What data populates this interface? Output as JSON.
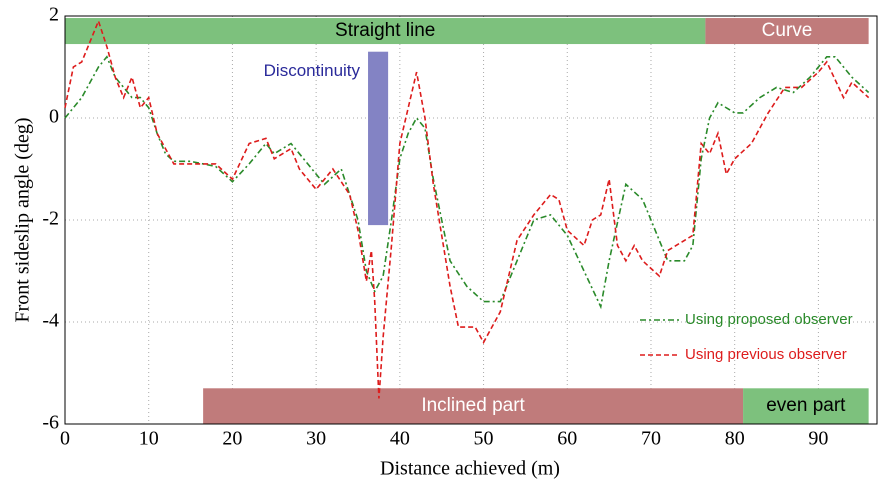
{
  "chart_data": {
    "type": "line",
    "xlabel": "Distance achieved (m)",
    "ylabel": "Front sideslip angle (deg)",
    "xlim": [
      0,
      97
    ],
    "xticks": [
      0,
      10,
      20,
      30,
      40,
      50,
      60,
      70,
      80,
      90
    ],
    "ylim": [
      -6,
      2
    ],
    "yticks": [
      -6,
      -4,
      -2,
      0,
      2
    ],
    "grid": true,
    "legend": "lower right",
    "annotations": [
      {
        "label": "Straight line",
        "x": [
          0,
          76.5
        ],
        "y": [
          1.45,
          1.96
        ],
        "color": "#7dc17d",
        "text_color": "#000000"
      },
      {
        "label": "Curve",
        "x": [
          76.5,
          96
        ],
        "y": [
          1.45,
          1.96
        ],
        "color": "#c07b7b",
        "text_color": "#ffffff"
      },
      {
        "label": "Discontinuity",
        "x": [
          36.2,
          38.6
        ],
        "y": [
          -2.1,
          1.3
        ],
        "color": "#8383c4",
        "text_color": "#2a2a9a"
      },
      {
        "label": "Inclined part",
        "x": [
          16.5,
          81
        ],
        "y": [
          -6,
          -5.3
        ],
        "color": "#c07b7b",
        "text_color": "#ffffff"
      },
      {
        "label": "even part",
        "x": [
          81,
          96
        ],
        "y": [
          -6,
          -5.3
        ],
        "color": "#7dc17d",
        "text_color": "#000000"
      }
    ],
    "series": [
      {
        "name": "Using proposed observer",
        "color": "#2a8a2a",
        "dash": "6,3,2,3",
        "x": [
          0,
          2,
          4,
          5,
          6,
          8,
          9,
          10,
          11,
          12,
          13,
          15,
          18,
          20,
          22,
          24,
          25,
          27,
          29,
          31,
          33,
          35,
          36,
          37,
          38,
          39,
          40,
          41,
          42,
          43,
          44,
          46,
          48,
          50,
          52,
          54,
          56,
          58,
          60,
          62,
          64,
          65,
          67,
          69,
          71,
          72,
          74,
          75,
          76,
          77,
          78,
          80,
          81,
          83,
          85,
          87,
          89,
          91,
          92,
          94,
          96
        ],
        "values": [
          0,
          0.4,
          1.0,
          1.2,
          0.8,
          0.4,
          0.4,
          0.2,
          -0.3,
          -0.7,
          -0.85,
          -0.85,
          -0.95,
          -1.25,
          -0.9,
          -0.5,
          -0.7,
          -0.5,
          -0.9,
          -1.3,
          -1.0,
          -2.0,
          -3.0,
          -3.4,
          -3.1,
          -2.0,
          -0.8,
          -0.3,
          0.0,
          -0.2,
          -1.2,
          -2.8,
          -3.3,
          -3.6,
          -3.6,
          -2.8,
          -2.0,
          -1.9,
          -2.3,
          -3.0,
          -3.7,
          -2.8,
          -1.3,
          -1.6,
          -2.4,
          -2.8,
          -2.8,
          -2.5,
          -0.8,
          0.0,
          0.3,
          0.1,
          0.1,
          0.4,
          0.6,
          0.5,
          0.8,
          1.2,
          1.2,
          0.8,
          0.5
        ]
      },
      {
        "name": "Using previous observer",
        "color": "#dd1c1c",
        "dash": "5,3",
        "x": [
          0,
          1,
          2,
          3,
          4,
          5,
          6,
          7,
          8,
          9,
          10,
          11,
          12,
          13,
          15,
          18,
          20,
          22,
          24,
          25,
          27,
          28,
          30,
          32,
          34,
          35,
          36,
          36.6,
          37,
          37.5,
          38,
          39,
          40,
          41,
          42,
          43,
          44,
          46,
          47,
          49,
          50,
          52,
          54,
          56,
          58,
          59,
          60,
          62,
          63,
          64,
          65,
          66,
          67,
          68,
          69,
          71,
          72,
          74,
          75,
          76,
          77,
          78,
          79,
          80,
          82,
          84,
          86,
          88,
          90,
          91,
          93,
          94,
          96
        ],
        "values": [
          0.2,
          1.0,
          1.1,
          1.5,
          1.9,
          1.4,
          0.8,
          0.4,
          0.8,
          0.2,
          0.4,
          -0.3,
          -0.6,
          -0.9,
          -0.9,
          -0.9,
          -1.2,
          -0.5,
          -0.4,
          -0.8,
          -0.6,
          -1.0,
          -1.4,
          -1.0,
          -1.5,
          -2.2,
          -3.2,
          -2.6,
          -3.6,
          -5.5,
          -4.3,
          -2.5,
          -0.5,
          0.2,
          0.9,
          0.0,
          -1.3,
          -3.3,
          -4.1,
          -4.1,
          -4.4,
          -3.8,
          -2.4,
          -1.9,
          -1.5,
          -1.6,
          -2.2,
          -2.5,
          -2.0,
          -1.9,
          -1.2,
          -2.5,
          -2.8,
          -2.5,
          -2.8,
          -3.1,
          -2.6,
          -2.4,
          -2.3,
          -0.5,
          -0.7,
          -0.3,
          -1.1,
          -0.8,
          -0.5,
          0.1,
          0.6,
          0.6,
          0.9,
          1.1,
          0.4,
          0.7,
          0.4
        ]
      }
    ]
  }
}
